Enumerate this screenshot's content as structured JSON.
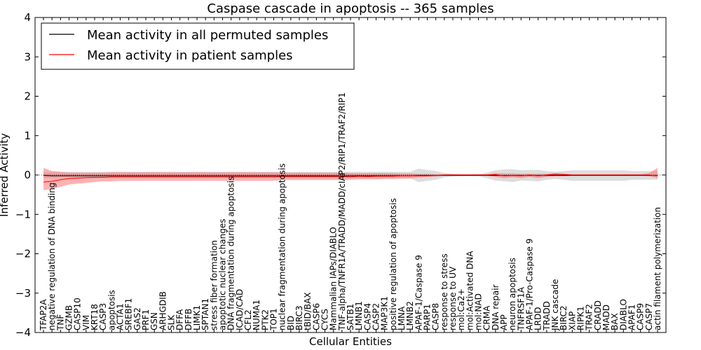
{
  "chart_data": {
    "type": "line",
    "title": "Caspase cascade in apoptosis -- 365 samples",
    "xlabel": "Cellular Entities",
    "ylabel": "Inferred Activity",
    "ylim": [
      -4,
      4
    ],
    "yticks": [
      -4,
      -3,
      -2,
      -1,
      0,
      1,
      2,
      3,
      4
    ],
    "ytick_labels": [
      "−4",
      "−3",
      "−2",
      "−1",
      "0",
      "1",
      "2",
      "3",
      "4"
    ],
    "legend": {
      "placement": "top-left",
      "entries": [
        "Mean activity in all permuted samples",
        "Mean activity in patient samples"
      ]
    },
    "colors": {
      "permuted": "#000000",
      "patient": "#ff0000",
      "patient_band": "#ff6666",
      "permuted_band": "#aaaaaa"
    },
    "categories": [
      "TFAP2A",
      "negative regulation of DNA binding",
      "TNF",
      "GZMB",
      "CASP10",
      "VIM",
      "KRT18",
      "CASP3",
      "apoptosis",
      "ACTA1",
      "SREBF1",
      "GAS2",
      "PRF1",
      "GSN",
      "ARHGDIB",
      "SLK",
      "DFFA",
      "DFFB",
      "LIMK1",
      "SPTAN1",
      "stress fiber formation",
      "apoptotic nuclear changes",
      "DNA fragmentation during apoptosis",
      "ICAD/CAD",
      "CFL2",
      "NUMA1",
      "PTK2",
      "TOP1",
      "nuclear fragmentation during apoptosis",
      "BID",
      "BIRC3",
      "tBID/BAX",
      "CASP6",
      "CYCS",
      "Mammalian IAPs/DIABLO",
      "TNF-alpha/TNFR1A/TRADD/MADD/cIAP2/RIP1/TRAF2/RIP1",
      "SATB1",
      "LMNB1",
      "CASP4",
      "CASP2",
      "MAP3K1",
      "positive regulation of apoptosis",
      "LMNA",
      "LMNB2",
      "APAF-1/Caspase 9",
      "PARP1",
      "CASP8",
      "response to stress",
      "response to UV",
      "mol:Ca2+",
      "mol:Activated DNA",
      "mol:NAD",
      "CRMA",
      "DNA repair",
      "APP",
      "neuron apoptosis",
      "TNFRSF1A",
      "APAF-1/Pro-Caspase 9",
      "LRDD",
      "TRADD",
      "JNK cascade",
      "BIRC2",
      "XIAP",
      "RIPK1",
      "TRAF2",
      "CRADD",
      "MADD",
      "BAX",
      "DIABLO",
      "APAF1",
      "CASP9",
      "CASP7",
      "actin filament polymerization"
    ],
    "series": [
      {
        "name": "Mean activity in all permuted samples",
        "values": [
          -0.01,
          -0.02,
          -0.02,
          -0.02,
          -0.02,
          -0.02,
          -0.02,
          -0.02,
          -0.02,
          -0.02,
          -0.02,
          -0.02,
          -0.02,
          -0.02,
          -0.02,
          -0.02,
          -0.02,
          -0.02,
          -0.02,
          -0.02,
          -0.02,
          -0.02,
          -0.02,
          -0.02,
          -0.02,
          -0.02,
          -0.02,
          -0.02,
          -0.02,
          -0.02,
          -0.02,
          -0.02,
          -0.02,
          -0.02,
          -0.02,
          -0.02,
          -0.02,
          -0.02,
          -0.02,
          -0.02,
          -0.02,
          -0.02,
          -0.02,
          -0.02,
          -0.01,
          -0.01,
          -0.01,
          -0.01,
          -0.01,
          -0.01,
          -0.01,
          -0.01,
          -0.01,
          -0.01,
          -0.01,
          -0.01,
          -0.01,
          -0.01,
          -0.01,
          -0.01,
          -0.01,
          -0.01,
          -0.01,
          -0.01,
          -0.01,
          -0.01,
          -0.01,
          -0.01,
          -0.01,
          -0.01,
          -0.01,
          -0.01,
          -0.01
        ],
        "lower": [
          -0.08,
          -0.08,
          -0.08,
          -0.08,
          -0.08,
          -0.08,
          -0.08,
          -0.08,
          -0.08,
          -0.08,
          -0.08,
          -0.08,
          -0.08,
          -0.08,
          -0.08,
          -0.08,
          -0.08,
          -0.08,
          -0.08,
          -0.08,
          -0.08,
          -0.08,
          -0.08,
          -0.08,
          -0.08,
          -0.08,
          -0.08,
          -0.08,
          -0.08,
          -0.08,
          -0.08,
          -0.08,
          -0.08,
          -0.08,
          -0.08,
          -0.08,
          -0.08,
          -0.08,
          -0.08,
          -0.08,
          -0.08,
          -0.08,
          -0.08,
          -0.08,
          -0.18,
          -0.15,
          -0.12,
          -0.06,
          -0.04,
          -0.03,
          -0.03,
          -0.03,
          -0.08,
          -0.14,
          -0.16,
          -0.18,
          -0.14,
          -0.15,
          -0.16,
          -0.12,
          -0.1,
          -0.12,
          -0.15,
          -0.15,
          -0.15,
          -0.15,
          -0.15,
          -0.15,
          -0.15,
          -0.12,
          -0.12,
          -0.12,
          -0.12
        ],
        "upper": [
          0.08,
          0.08,
          0.08,
          0.08,
          0.08,
          0.08,
          0.08,
          0.08,
          0.08,
          0.08,
          0.08,
          0.08,
          0.08,
          0.08,
          0.08,
          0.08,
          0.08,
          0.08,
          0.08,
          0.08,
          0.08,
          0.08,
          0.08,
          0.08,
          0.08,
          0.08,
          0.08,
          0.08,
          0.08,
          0.08,
          0.08,
          0.08,
          0.08,
          0.08,
          0.08,
          0.08,
          0.08,
          0.08,
          0.08,
          0.08,
          0.08,
          0.08,
          0.08,
          0.08,
          0.16,
          0.13,
          0.1,
          0.05,
          0.03,
          0.02,
          0.02,
          0.02,
          0.06,
          0.12,
          0.14,
          0.15,
          0.12,
          0.13,
          0.13,
          0.1,
          0.08,
          0.1,
          0.12,
          0.12,
          0.12,
          0.12,
          0.12,
          0.12,
          0.12,
          0.1,
          0.1,
          0.1,
          0.1
        ]
      },
      {
        "name": "Mean activity in patient samples",
        "values": [
          -0.18,
          -0.16,
          -0.12,
          -0.09,
          -0.08,
          -0.07,
          -0.06,
          -0.06,
          -0.05,
          -0.05,
          -0.05,
          -0.05,
          -0.05,
          -0.05,
          -0.05,
          -0.05,
          -0.05,
          -0.05,
          -0.05,
          -0.05,
          -0.05,
          -0.05,
          -0.05,
          -0.05,
          -0.05,
          -0.05,
          -0.05,
          -0.05,
          -0.04,
          -0.04,
          -0.04,
          -0.04,
          -0.04,
          -0.04,
          -0.04,
          -0.04,
          -0.05,
          -0.03,
          -0.04,
          -0.03,
          -0.03,
          -0.03,
          -0.02,
          -0.02,
          -0.02,
          -0.02,
          -0.01,
          0,
          0,
          0,
          0,
          0,
          0,
          0.01,
          -0.02,
          -0.01,
          -0.02,
          0,
          -0.02,
          0,
          0.02,
          0.01,
          0,
          0,
          0,
          0,
          0,
          0,
          0,
          0,
          0,
          0,
          -0.02
        ],
        "lower": [
          -0.38,
          -0.36,
          -0.3,
          -0.24,
          -0.22,
          -0.2,
          -0.18,
          -0.16,
          -0.16,
          -0.15,
          -0.15,
          -0.15,
          -0.15,
          -0.15,
          -0.15,
          -0.15,
          -0.15,
          -0.15,
          -0.15,
          -0.15,
          -0.15,
          -0.15,
          -0.15,
          -0.15,
          -0.15,
          -0.15,
          -0.15,
          -0.15,
          -0.13,
          -0.13,
          -0.13,
          -0.13,
          -0.13,
          -0.13,
          -0.13,
          -0.13,
          -0.12,
          -0.11,
          -0.11,
          -0.11,
          -0.1,
          -0.1,
          -0.09,
          -0.09,
          -0.06,
          -0.05,
          -0.04,
          -0.02,
          -0.02,
          -0.02,
          -0.02,
          -0.02,
          -0.02,
          -0.05,
          -0.08,
          -0.06,
          -0.08,
          -0.05,
          -0.08,
          -0.05,
          -0.03,
          -0.03,
          -0.02,
          -0.02,
          -0.02,
          -0.02,
          -0.02,
          -0.02,
          -0.02,
          -0.02,
          -0.02,
          -0.03,
          -0.08
        ],
        "upper": [
          0.18,
          0.1,
          0.08,
          0.06,
          0.06,
          0.06,
          0.06,
          0.06,
          0.07,
          0.07,
          0.07,
          0.07,
          0.07,
          0.07,
          0.07,
          0.07,
          0.07,
          0.07,
          0.07,
          0.07,
          0.07,
          0.07,
          0.07,
          0.07,
          0.07,
          0.07,
          0.07,
          0.07,
          0.06,
          0.06,
          0.06,
          0.06,
          0.06,
          0.06,
          0.06,
          0.06,
          0.05,
          0.05,
          0.05,
          0.05,
          0.05,
          0.05,
          0.04,
          0.04,
          0.03,
          0.03,
          0.02,
          0.02,
          0.02,
          0.02,
          0.02,
          0.02,
          0.02,
          0.05,
          0.04,
          0.04,
          0.03,
          0.03,
          0.03,
          0.03,
          0.05,
          0.04,
          0.02,
          0.02,
          0.02,
          0.02,
          0.02,
          0.02,
          0.02,
          0.02,
          0.02,
          0.05,
          0.18
        ]
      }
    ]
  }
}
